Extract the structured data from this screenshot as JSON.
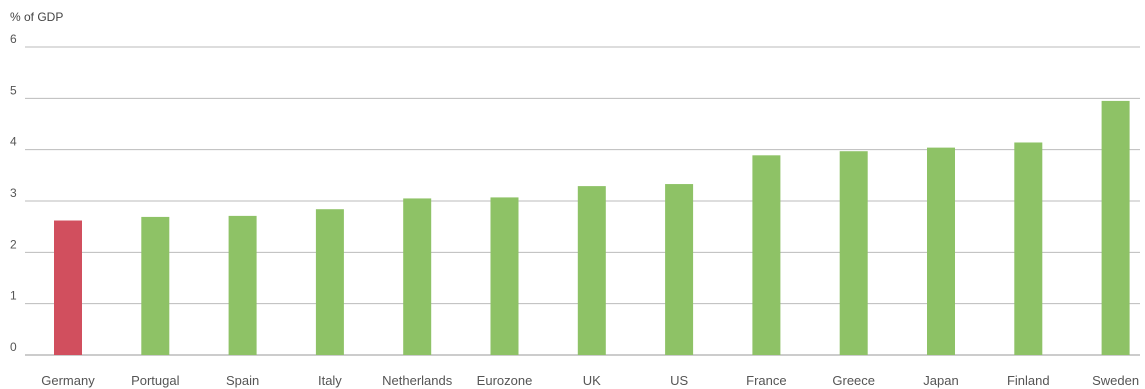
{
  "unit_label": "% of GDP",
  "chart_data": {
    "type": "bar",
    "ylabel": "% of GDP",
    "xlabel": "",
    "ylim": [
      0,
      6
    ],
    "yticks": [
      0,
      1,
      2,
      3,
      4,
      5,
      6
    ],
    "grid": true,
    "categories": [
      "Germany",
      "Portugal",
      "Spain",
      "Italy",
      "Netherlands",
      "Eurozone",
      "UK",
      "US",
      "France",
      "Greece",
      "Japan",
      "Finland",
      "Sweden"
    ],
    "values": [
      2.62,
      2.69,
      2.71,
      2.84,
      3.05,
      3.07,
      3.29,
      3.33,
      3.89,
      3.97,
      4.04,
      4.14,
      4.95
    ],
    "bar_colors": [
      "#d14f5e",
      "#8ec266",
      "#8ec266",
      "#8ec266",
      "#8ec266",
      "#8ec266",
      "#8ec266",
      "#8ec266",
      "#8ec266",
      "#8ec266",
      "#8ec266",
      "#8ec266",
      "#8ec266"
    ]
  }
}
